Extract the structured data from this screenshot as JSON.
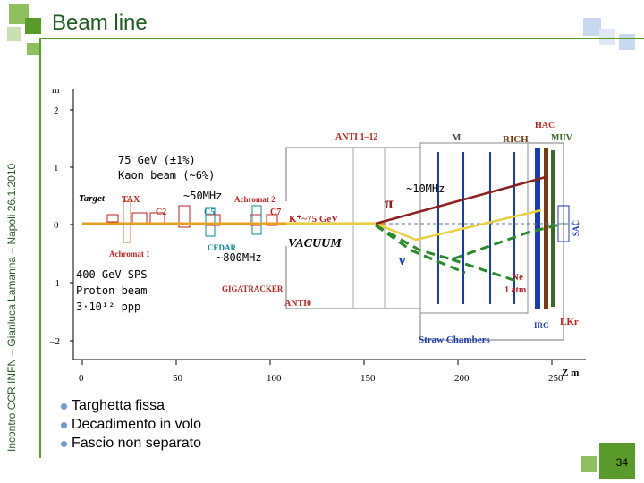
{
  "slide": {
    "title": "Beam line",
    "side_text": "Incontro CCR INFN – Gianluca Lamanna – Napoli 26.1.2010",
    "page_number": "34",
    "accent_color": "#5a9a2a"
  },
  "diagram": {
    "y_axis_unit": "m",
    "x_axis_unit": "Z m",
    "y_ticks": [
      "2",
      "1",
      "0",
      "–1",
      "–2"
    ],
    "x_ticks": [
      "0",
      "50",
      "100",
      "150",
      "200",
      "250"
    ],
    "labels": {
      "anti": "ANTI 1–12",
      "m": "M",
      "rich": "RICH",
      "hac": "HAC",
      "muv": "MUV",
      "target": "Target",
      "tax": "TAX",
      "achromat2": "Achromat 2",
      "c2": "C2",
      "c5": "C5",
      "c7": "C7",
      "achromat1": "Achromat 1",
      "cedar": "CEDAR",
      "kplus": "K⁺~75 GeV",
      "vacuum": "VACUUM",
      "gigatracker": "GIGATRACKER",
      "anti0": "ANTI0",
      "straw": "Straw Chambers",
      "ne": "Ne",
      "atm": "1 atm",
      "irc": "IRC",
      "lkr": "LKr",
      "sac": "SAC",
      "pi": "π",
      "nu": "ν"
    },
    "annotations": {
      "kaon_line1": "75 GeV (±1%)",
      "kaon_line2": "Kaon beam (~6%)",
      "rate_50": "~50MHz",
      "rate_10": "~10MHz",
      "rate_800": "~800MHz",
      "proton_line1": "400 GeV SPS",
      "proton_line2": "Proton beam",
      "proton_line3": "3·10¹² ppp"
    }
  },
  "bullets": [
    "Targhetta fissa",
    "Decadimento in volo",
    "Fascio non separato"
  ]
}
